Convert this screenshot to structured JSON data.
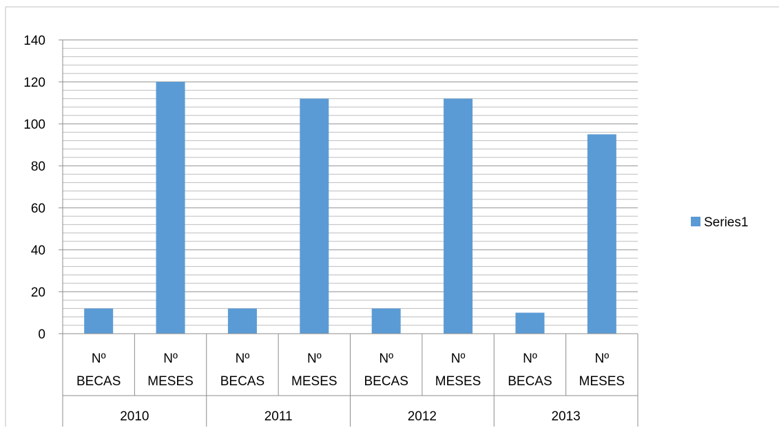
{
  "chart_data": {
    "type": "bar",
    "title": "",
    "xlabel": "",
    "ylabel": "",
    "ylim": [
      0,
      140
    ],
    "yticks": [
      0,
      20,
      40,
      60,
      80,
      100,
      120,
      140
    ],
    "grid": true,
    "legend_position": "right",
    "groups": [
      "2010",
      "2011",
      "2012",
      "2013"
    ],
    "category_lines": [
      [
        "Nº",
        "BECAS"
      ],
      [
        "Nº",
        "MESES"
      ]
    ],
    "categories": [
      "Nº BECAS 2010",
      "Nº MESES 2010",
      "Nº BECAS 2011",
      "Nº MESES 2011",
      "Nº BECAS 2012",
      "Nº MESES 2012",
      "Nº BECAS 2013",
      "Nº MESES 2013"
    ],
    "series": [
      {
        "name": "Series1",
        "color": "#5b9bd5",
        "values": [
          12,
          120,
          12,
          112,
          12,
          112,
          10,
          95
        ]
      }
    ]
  }
}
